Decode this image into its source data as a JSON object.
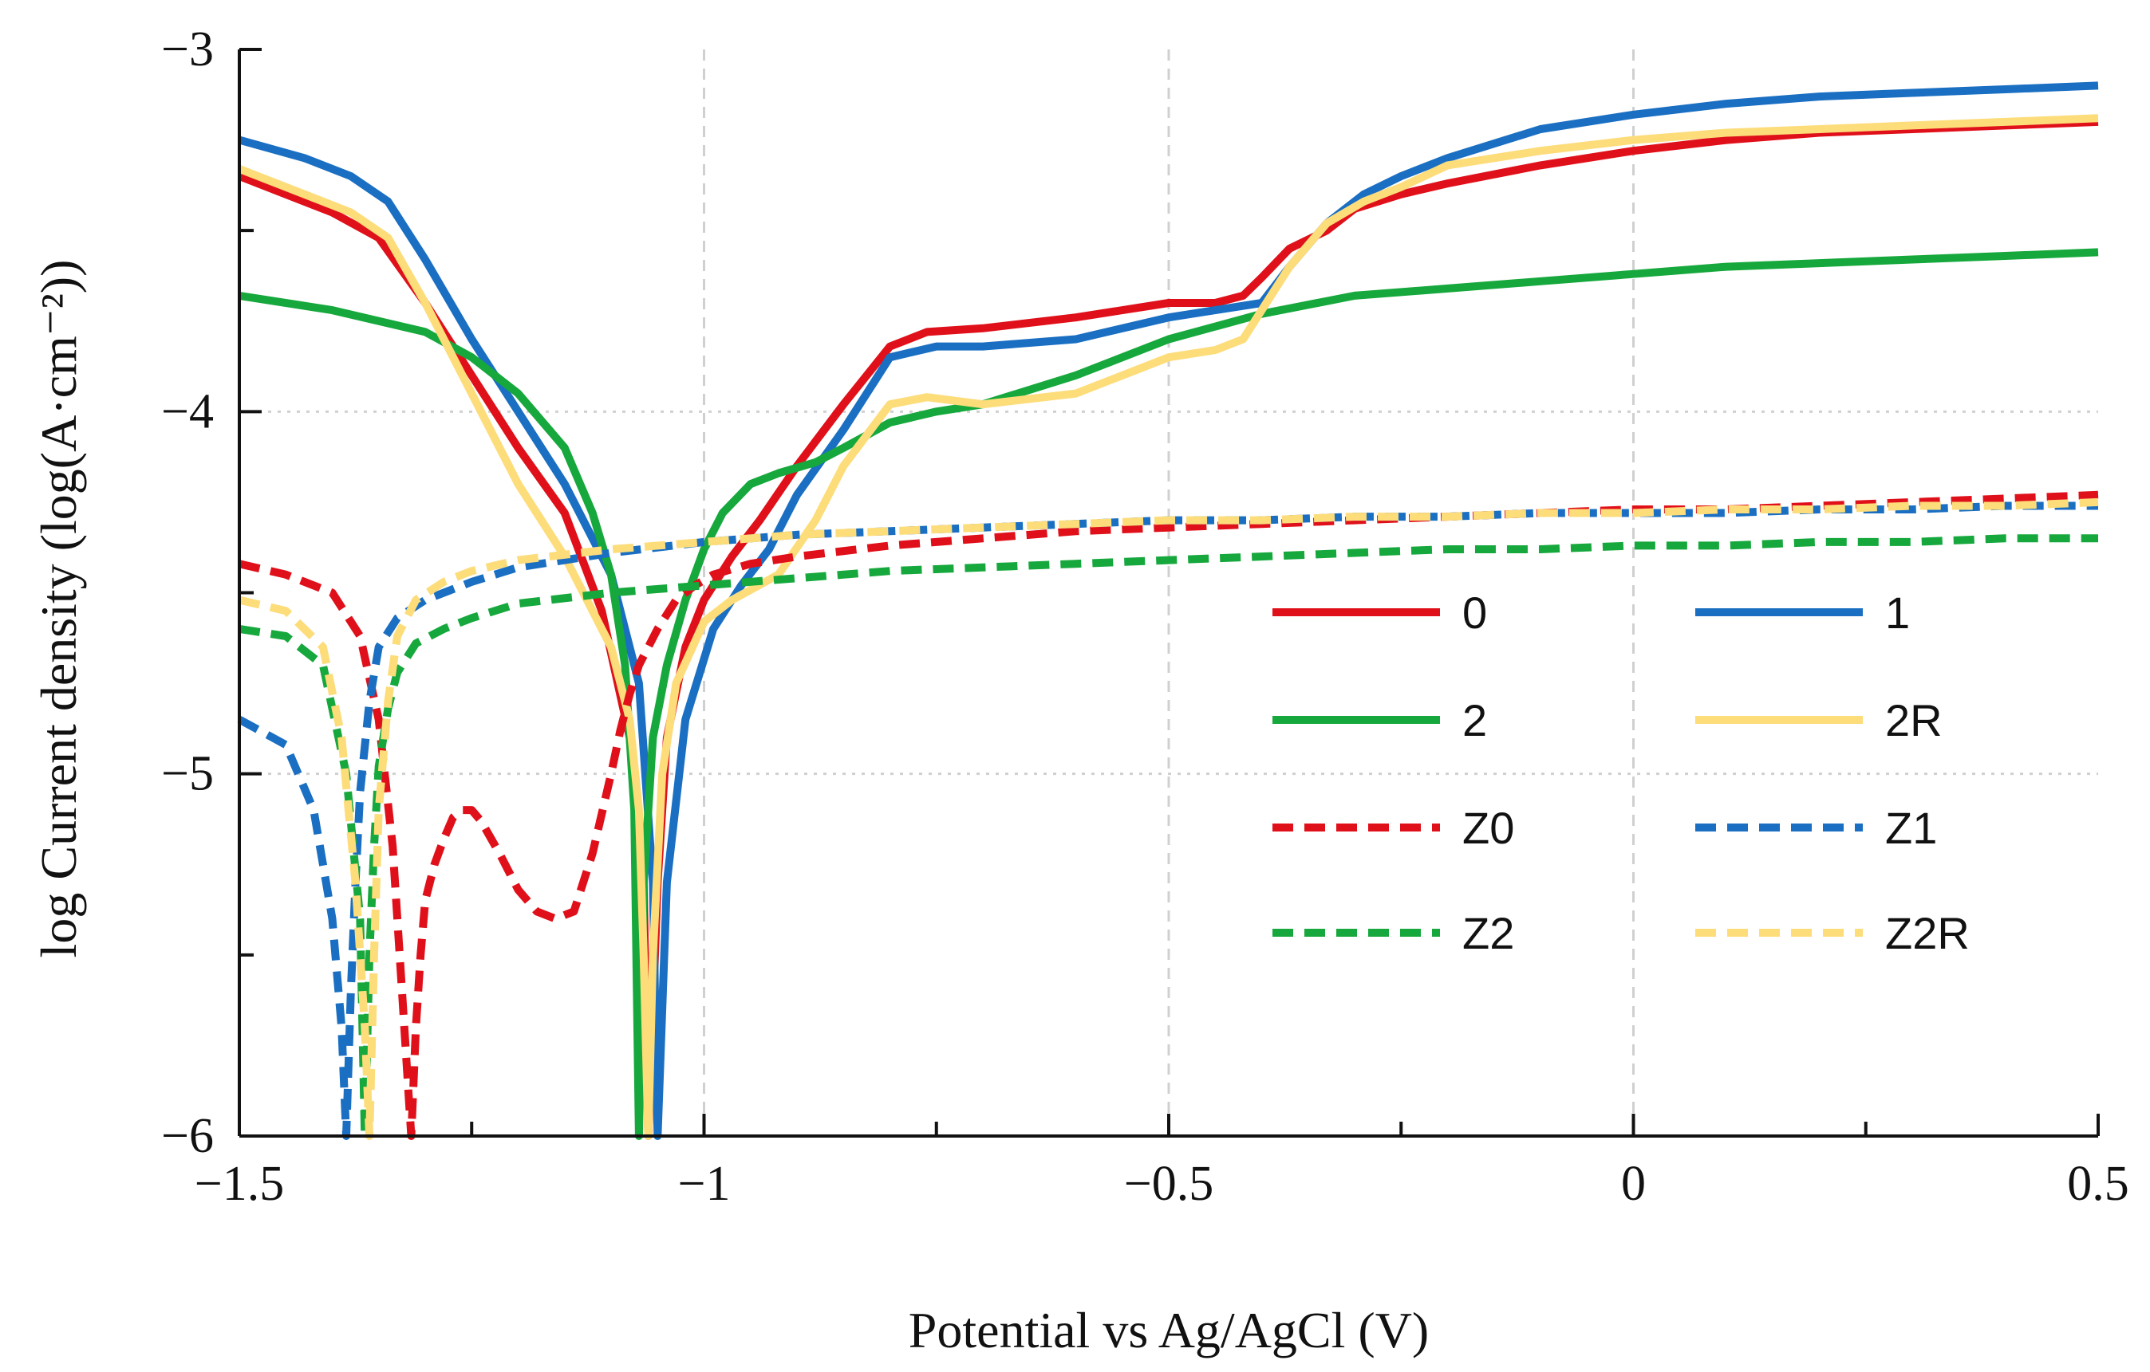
{
  "chart_data": {
    "type": "line",
    "title": "",
    "xlabel": "Potential vs Ag/AgCl (V)",
    "ylabel": "log Current density (log(A·cm⁻²))",
    "xlim": [
      -1.5,
      0.5
    ],
    "ylim": [
      -6,
      -3
    ],
    "x_ticks": [
      -1.5,
      -1,
      -0.5,
      0,
      0.5
    ],
    "x_tick_labels": [
      "−1.5",
      "−1",
      "−0.5",
      "0",
      "0.5"
    ],
    "y_ticks": [
      -6,
      -5,
      -4,
      -3
    ],
    "y_tick_labels": [
      "−6",
      "−5",
      "−4",
      "−3"
    ],
    "grid": true,
    "legend_position": "right, lower-middle",
    "series": [
      {
        "name": "0",
        "color": "#e0101a",
        "dash": false,
        "x": [
          -1.5,
          -1.4,
          -1.35,
          -1.3,
          -1.25,
          -1.2,
          -1.15,
          -1.11,
          -1.08,
          -1.065,
          -1.06,
          -1.05,
          -1.04,
          -1.02,
          -1.0,
          -0.97,
          -0.94,
          -0.9,
          -0.85,
          -0.8,
          -0.76,
          -0.7,
          -0.6,
          -0.5,
          -0.45,
          -0.42,
          -0.4,
          -0.37,
          -0.33,
          -0.3,
          -0.25,
          -0.2,
          -0.1,
          0.0,
          0.1,
          0.2,
          0.3,
          0.4,
          0.5
        ],
        "y": [
          -3.35,
          -3.45,
          -3.52,
          -3.7,
          -3.9,
          -4.1,
          -4.28,
          -4.55,
          -4.9,
          -5.3,
          -6.0,
          -5.3,
          -4.9,
          -4.65,
          -4.52,
          -4.4,
          -4.3,
          -4.15,
          -3.98,
          -3.82,
          -3.78,
          -3.77,
          -3.74,
          -3.7,
          -3.7,
          -3.68,
          -3.63,
          -3.55,
          -3.5,
          -3.44,
          -3.4,
          -3.37,
          -3.32,
          -3.28,
          -3.25,
          -3.23,
          -3.22,
          -3.21,
          -3.2
        ]
      },
      {
        "name": "1",
        "color": "#1a6fc2",
        "dash": false,
        "x": [
          -1.5,
          -1.43,
          -1.38,
          -1.34,
          -1.3,
          -1.25,
          -1.2,
          -1.15,
          -1.1,
          -1.07,
          -1.055,
          -1.05,
          -1.04,
          -1.02,
          -0.99,
          -0.96,
          -0.93,
          -0.9,
          -0.85,
          -0.8,
          -0.75,
          -0.7,
          -0.6,
          -0.5,
          -0.45,
          -0.4,
          -0.37,
          -0.33,
          -0.29,
          -0.25,
          -0.2,
          -0.1,
          0.0,
          0.1,
          0.2,
          0.3,
          0.4,
          0.5
        ],
        "y": [
          -3.25,
          -3.3,
          -3.35,
          -3.42,
          -3.58,
          -3.8,
          -4.0,
          -4.2,
          -4.45,
          -4.75,
          -5.3,
          -6.0,
          -5.3,
          -4.85,
          -4.6,
          -4.48,
          -4.38,
          -4.23,
          -4.05,
          -3.85,
          -3.82,
          -3.82,
          -3.8,
          -3.74,
          -3.72,
          -3.7,
          -3.6,
          -3.48,
          -3.4,
          -3.35,
          -3.3,
          -3.22,
          -3.18,
          -3.15,
          -3.13,
          -3.12,
          -3.11,
          -3.1
        ]
      },
      {
        "name": "2",
        "color": "#16a83c",
        "dash": false,
        "x": [
          -1.5,
          -1.4,
          -1.3,
          -1.25,
          -1.2,
          -1.15,
          -1.12,
          -1.1,
          -1.085,
          -1.075,
          -1.07,
          -1.065,
          -1.055,
          -1.04,
          -1.02,
          -1.0,
          -0.98,
          -0.95,
          -0.92,
          -0.88,
          -0.85,
          -0.8,
          -0.75,
          -0.7,
          -0.6,
          -0.5,
          -0.4,
          -0.3,
          -0.2,
          -0.1,
          0.0,
          0.1,
          0.2,
          0.3,
          0.4,
          0.5
        ],
        "y": [
          -3.68,
          -3.72,
          -3.78,
          -3.85,
          -3.95,
          -4.1,
          -4.28,
          -4.45,
          -4.7,
          -5.1,
          -6.0,
          -5.3,
          -4.9,
          -4.7,
          -4.52,
          -4.38,
          -4.28,
          -4.2,
          -4.17,
          -4.14,
          -4.1,
          -4.03,
          -4.0,
          -3.98,
          -3.9,
          -3.8,
          -3.73,
          -3.68,
          -3.66,
          -3.64,
          -3.62,
          -3.6,
          -3.59,
          -3.58,
          -3.57,
          -3.56
        ]
      },
      {
        "name": "2R",
        "color": "#fddc7a",
        "dash": false,
        "x": [
          -1.5,
          -1.43,
          -1.38,
          -1.34,
          -1.3,
          -1.25,
          -1.2,
          -1.15,
          -1.12,
          -1.1,
          -1.08,
          -1.07,
          -1.065,
          -1.06,
          -1.055,
          -1.045,
          -1.03,
          -1.0,
          -0.97,
          -0.92,
          -0.88,
          -0.85,
          -0.8,
          -0.76,
          -0.7,
          -0.6,
          -0.5,
          -0.45,
          -0.42,
          -0.4,
          -0.37,
          -0.33,
          -0.29,
          -0.25,
          -0.2,
          -0.1,
          0.0,
          0.1,
          0.2,
          0.3,
          0.4,
          0.5
        ],
        "y": [
          -3.33,
          -3.4,
          -3.45,
          -3.52,
          -3.7,
          -3.95,
          -4.2,
          -4.4,
          -4.55,
          -4.65,
          -4.85,
          -5.1,
          -5.5,
          -6.0,
          -5.5,
          -5.0,
          -4.75,
          -4.58,
          -4.52,
          -4.45,
          -4.3,
          -4.15,
          -3.98,
          -3.96,
          -3.98,
          -3.95,
          -3.85,
          -3.83,
          -3.8,
          -3.72,
          -3.6,
          -3.48,
          -3.42,
          -3.38,
          -3.32,
          -3.28,
          -3.25,
          -3.23,
          -3.22,
          -3.21,
          -3.2,
          -3.19
        ]
      },
      {
        "name": "Z0",
        "color": "#e0101a",
        "dash": true,
        "x": [
          -1.5,
          -1.45,
          -1.4,
          -1.37,
          -1.35,
          -1.335,
          -1.325,
          -1.315,
          -1.31,
          -1.305,
          -1.3,
          -1.29,
          -1.28,
          -1.27,
          -1.26,
          -1.25,
          -1.24,
          -1.22,
          -1.2,
          -1.18,
          -1.16,
          -1.14,
          -1.12,
          -1.1,
          -1.09,
          -1.08,
          -1.07,
          -1.05,
          -1.03,
          -1.01,
          -0.99,
          -0.95,
          -0.9,
          -0.8,
          -0.7,
          -0.6,
          -0.5,
          -0.4,
          -0.3,
          -0.2,
          -0.1,
          0.0,
          0.1,
          0.2,
          0.3,
          0.4,
          0.5
        ],
        "y": [
          -4.42,
          -4.45,
          -4.5,
          -4.62,
          -4.85,
          -5.2,
          -5.6,
          -6.0,
          -5.7,
          -5.5,
          -5.35,
          -5.25,
          -5.18,
          -5.12,
          -5.1,
          -5.1,
          -5.13,
          -5.22,
          -5.32,
          -5.38,
          -5.4,
          -5.38,
          -5.22,
          -5.0,
          -4.88,
          -4.78,
          -4.7,
          -4.6,
          -4.52,
          -4.48,
          -4.45,
          -4.42,
          -4.4,
          -4.37,
          -4.35,
          -4.33,
          -4.32,
          -4.31,
          -4.3,
          -4.29,
          -4.28,
          -4.27,
          -4.27,
          -4.26,
          -4.25,
          -4.24,
          -4.23
        ]
      },
      {
        "name": "Z1",
        "color": "#1a6fc2",
        "dash": true,
        "x": [
          -1.5,
          -1.45,
          -1.42,
          -1.4,
          -1.39,
          -1.385,
          -1.38,
          -1.375,
          -1.37,
          -1.36,
          -1.35,
          -1.33,
          -1.3,
          -1.25,
          -1.2,
          -1.1,
          -1.0,
          -0.9,
          -0.8,
          -0.7,
          -0.6,
          -0.5,
          -0.4,
          -0.3,
          -0.2,
          -0.1,
          0.0,
          0.1,
          0.2,
          0.3,
          0.4,
          0.5
        ],
        "y": [
          -4.85,
          -4.92,
          -5.1,
          -5.4,
          -5.7,
          -6.0,
          -5.6,
          -5.3,
          -5.05,
          -4.8,
          -4.65,
          -4.57,
          -4.52,
          -4.47,
          -4.43,
          -4.39,
          -4.36,
          -4.34,
          -4.33,
          -4.32,
          -4.31,
          -4.3,
          -4.3,
          -4.29,
          -4.29,
          -4.28,
          -4.28,
          -4.28,
          -4.27,
          -4.27,
          -4.26,
          -4.26
        ]
      },
      {
        "name": "Z2",
        "color": "#16a83c",
        "dash": true,
        "x": [
          -1.5,
          -1.45,
          -1.41,
          -1.385,
          -1.37,
          -1.365,
          -1.36,
          -1.355,
          -1.35,
          -1.34,
          -1.33,
          -1.31,
          -1.28,
          -1.25,
          -1.2,
          -1.1,
          -1.0,
          -0.9,
          -0.8,
          -0.7,
          -0.6,
          -0.5,
          -0.4,
          -0.3,
          -0.2,
          -0.1,
          0.0,
          0.1,
          0.2,
          0.3,
          0.4,
          0.5
        ],
        "y": [
          -4.6,
          -4.62,
          -4.7,
          -5.0,
          -5.4,
          -6.0,
          -5.5,
          -5.2,
          -4.98,
          -4.82,
          -4.72,
          -4.64,
          -4.6,
          -4.57,
          -4.53,
          -4.5,
          -4.48,
          -4.46,
          -4.44,
          -4.43,
          -4.42,
          -4.41,
          -4.4,
          -4.39,
          -4.38,
          -4.38,
          -4.37,
          -4.37,
          -4.36,
          -4.36,
          -4.35,
          -4.35
        ]
      },
      {
        "name": "Z2R",
        "color": "#fddc7a",
        "dash": true,
        "x": [
          -1.5,
          -1.45,
          -1.41,
          -1.39,
          -1.375,
          -1.365,
          -1.36,
          -1.355,
          -1.35,
          -1.34,
          -1.33,
          -1.31,
          -1.28,
          -1.25,
          -1.2,
          -1.1,
          -1.0,
          -0.9,
          -0.8,
          -0.7,
          -0.6,
          -0.5,
          -0.4,
          -0.3,
          -0.2,
          -0.1,
          0.0,
          0.1,
          0.2,
          0.3,
          0.4,
          0.5
        ],
        "y": [
          -4.52,
          -4.55,
          -4.65,
          -4.9,
          -5.3,
          -5.7,
          -6.0,
          -5.5,
          -5.1,
          -4.8,
          -4.62,
          -4.52,
          -4.47,
          -4.44,
          -4.41,
          -4.38,
          -4.36,
          -4.34,
          -4.33,
          -4.32,
          -4.31,
          -4.3,
          -4.3,
          -4.29,
          -4.29,
          -4.28,
          -4.28,
          -4.27,
          -4.27,
          -4.26,
          -4.26,
          -4.25
        ]
      }
    ]
  }
}
